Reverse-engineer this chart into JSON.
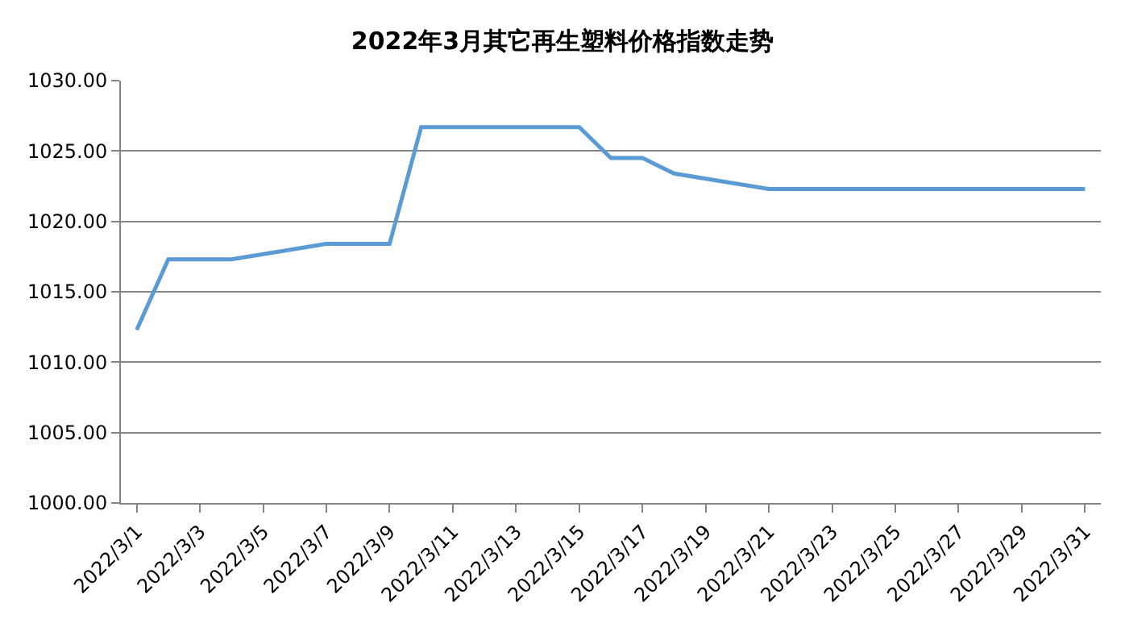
{
  "chart_data": {
    "type": "line",
    "title": "2022年3月其它再生塑料价格指数走势",
    "x": [
      "2022-03-01",
      "2022-03-02",
      "2022-03-03",
      "2022-03-04",
      "2022-03-07",
      "2022-03-08",
      "2022-03-09",
      "2022-03-10",
      "2022-03-11",
      "2022-03-14",
      "2022-03-15",
      "2022-03-16",
      "2022-03-17",
      "2022-03-18",
      "2022-03-21",
      "2022-03-22",
      "2022-03-23",
      "2022-03-24",
      "2022-03-25",
      "2022-03-28",
      "2022-03-29",
      "2022-03-30",
      "2022-03-31"
    ],
    "series": [
      {
        "color": "#5b9bd5",
        "values": [
          1012.3,
          1017.3,
          1017.3,
          1017.3,
          1018.4,
          1018.4,
          1018.4,
          1026.7,
          1026.7,
          1026.7,
          1026.7,
          1024.5,
          1024.5,
          1023.4,
          1022.3,
          1022.3,
          1022.3,
          1022.3,
          1022.3,
          1022.3,
          1022.3,
          1022.3,
          1022.3
        ]
      }
    ],
    "xlim": [
      "2022-02-28T12:00",
      "2022-03-31T12:00"
    ],
    "xticks": [
      {
        "value": "2022-03-01",
        "label": "2022/3/1"
      },
      {
        "value": "2022-03-03",
        "label": "2022/3/3"
      },
      {
        "value": "2022-03-05",
        "label": "2022/3/5"
      },
      {
        "value": "2022-03-07",
        "label": "2022/3/7"
      },
      {
        "value": "2022-03-09",
        "label": "2022/3/9"
      },
      {
        "value": "2022-03-11",
        "label": "2022/3/11"
      },
      {
        "value": "2022-03-13",
        "label": "2022/3/13"
      },
      {
        "value": "2022-03-15",
        "label": "2022/3/15"
      },
      {
        "value": "2022-03-17",
        "label": "2022/3/17"
      },
      {
        "value": "2022-03-19",
        "label": "2022/3/19"
      },
      {
        "value": "2022-03-21",
        "label": "2022/3/21"
      },
      {
        "value": "2022-03-23",
        "label": "2022/3/23"
      },
      {
        "value": "2022-03-25",
        "label": "2022/3/25"
      },
      {
        "value": "2022-03-27",
        "label": "2022/3/27"
      },
      {
        "value": "2022-03-29",
        "label": "2022/3/29"
      },
      {
        "value": "2022-03-31",
        "label": "2022/3/31"
      }
    ],
    "ylim": [
      1000,
      1030
    ],
    "yticks": [
      {
        "value": 1000,
        "label": "1000.00"
      },
      {
        "value": 1005,
        "label": "1005.00"
      },
      {
        "value": 1010,
        "label": "1010.00"
      },
      {
        "value": 1015,
        "label": "1015.00"
      },
      {
        "value": 1020,
        "label": "1020.00"
      },
      {
        "value": 1025,
        "label": "1025.00"
      },
      {
        "value": 1030,
        "label": "1030.00"
      }
    ],
    "grid": "y",
    "marker": "none",
    "line_style": "solid"
  }
}
